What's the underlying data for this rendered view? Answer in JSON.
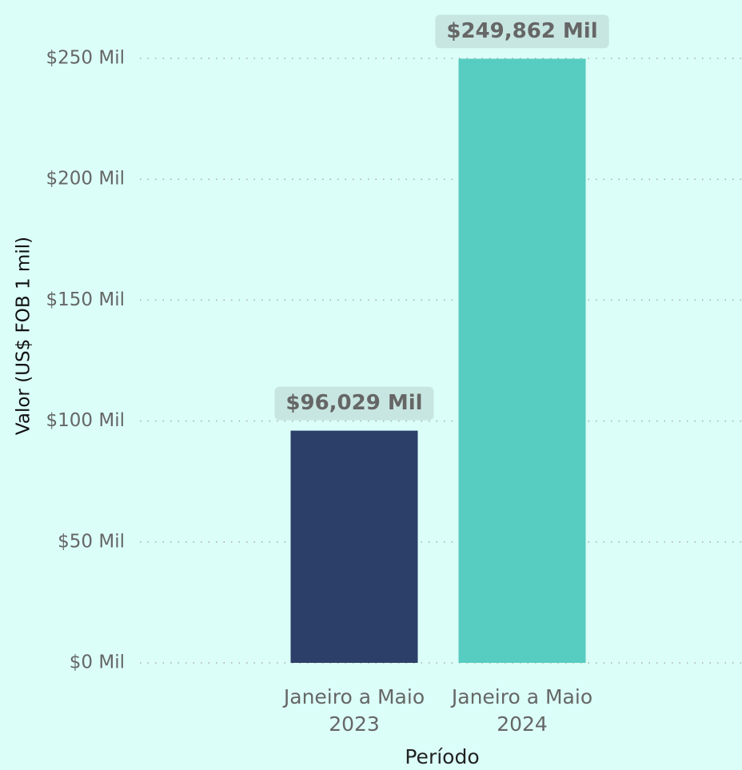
{
  "chart_data": {
    "type": "bar",
    "categories": [
      "Janeiro a Maio 2023",
      "Janeiro a Maio 2024"
    ],
    "values": [
      96.029,
      249.862
    ],
    "value_labels": [
      "$96,029 Mil",
      "$249,862 Mil"
    ],
    "colors": [
      "#2b3f68",
      "#57ccc0"
    ],
    "ylabel": "Valor (US$ FOB 1 mil)",
    "xlabel": "Período",
    "ylim": [
      0,
      250
    ],
    "yticks": [
      {
        "value": 0,
        "label": "$0 Mil"
      },
      {
        "value": 50,
        "label": "$50 Mil"
      },
      {
        "value": 100,
        "label": "$100 Mil"
      },
      {
        "value": 150,
        "label": "$150 Mil"
      },
      {
        "value": 200,
        "label": "$200 Mil"
      },
      {
        "value": 250,
        "label": "$250 Mil"
      }
    ],
    "grid": true
  }
}
